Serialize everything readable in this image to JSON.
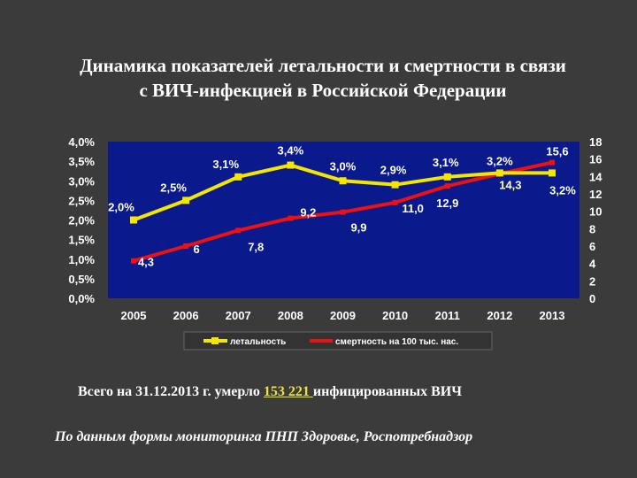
{
  "title": {
    "line1": "Динамика показателей летальности и смертности в связи",
    "line2": "с  ВИЧ-инфекцией в Российской Федерации"
  },
  "chart_data": {
    "type": "line",
    "categories": [
      "2005",
      "2006",
      "2007",
      "2008",
      "2009",
      "2010",
      "2011",
      "2012",
      "2013"
    ],
    "series": [
      {
        "name": "летальность",
        "axis": "left",
        "color": "#f5e600",
        "values": [
          2.0,
          2.5,
          3.1,
          3.4,
          3.0,
          2.9,
          3.1,
          3.2,
          3.2
        ],
        "labels": [
          "2,0%",
          "2,5%",
          "3,1%",
          "3,4%",
          "3,0%",
          "2,9%",
          "3,1%",
          "3,2%",
          "3,2%"
        ]
      },
      {
        "name": "смертность на 100 тыс. нас.",
        "axis": "right",
        "color": "#ee1111",
        "values": [
          4.3,
          6,
          7.8,
          9.2,
          9.9,
          11.0,
          12.9,
          14.3,
          15.6
        ],
        "labels": [
          "4,3",
          "6",
          "7,8",
          "9,2",
          "9,9",
          "11,0",
          "12,9",
          "14,3",
          "15,6"
        ]
      }
    ],
    "y_left": {
      "ylim": [
        0,
        4
      ],
      "ticks": [
        "0,0%",
        "0,5%",
        "1,0%",
        "1,5%",
        "2,0%",
        "2,5%",
        "3,0%",
        "3,5%",
        "4,0%"
      ]
    },
    "y_right": {
      "ylim": [
        0,
        18
      ],
      "ticks": [
        "0",
        "2",
        "4",
        "6",
        "8",
        "10",
        "12",
        "14",
        "16",
        "18"
      ]
    },
    "grid": false,
    "legend_position": "bottom",
    "colors": {
      "plot_background": "#0a1a8c",
      "axis_text": "#ffffff",
      "legend_background": "#333333"
    }
  },
  "note": {
    "before": "Всего на 31.12.2013 г. умерло ",
    "highlight": "153 221 ",
    "after": "инфицированных ВИЧ"
  },
  "source": "По данным формы мониторинга ПНП Здоровье, Роспотребнадзор"
}
